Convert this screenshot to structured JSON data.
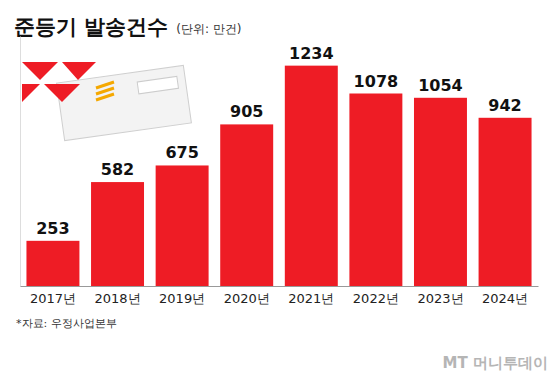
{
  "chart_data": {
    "type": "bar",
    "title": "준등기 발송건수",
    "subtitle": "(단위: 만건)",
    "categories": [
      "2017년",
      "2018년",
      "2019년",
      "2020년",
      "2021년",
      "2022년",
      "2023년",
      "2024년"
    ],
    "values": [
      253,
      582,
      675,
      905,
      1234,
      1078,
      1054,
      942
    ],
    "color": "#ee1c25",
    "ylim": [
      0,
      1400
    ],
    "data_labels": true,
    "tick_labels": "x",
    "grid": false,
    "source": "*자료: 우정사업본부",
    "credit": "MT 머니투데이"
  }
}
